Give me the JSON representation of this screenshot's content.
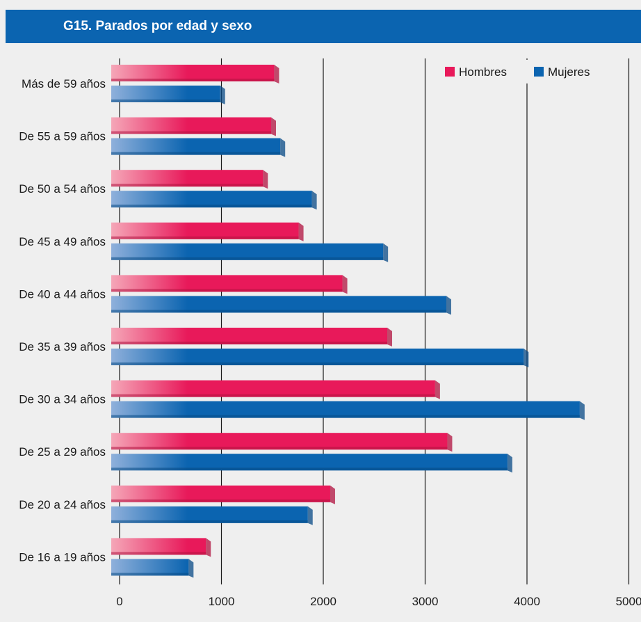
{
  "header": {
    "title": "G15. Parados por edad y sexo"
  },
  "colors": {
    "hombres": "#e8195a",
    "hombres_light": "#f5a7b8",
    "mujeres": "#0b64b0",
    "mujeres_light": "#8fb0db",
    "header_bg": "#0b64b0",
    "background": "#efefef"
  },
  "chart_data": {
    "type": "bar",
    "orientation": "horizontal",
    "title": "G15. Parados por edad y sexo",
    "categories": [
      "Más de 59 años",
      "De 55 a 59 años",
      "De 50 a 54 años",
      "De 45 a 49 años",
      "De 40 a 44 años",
      "De 35 a 39 años",
      "De 30 a 34 años",
      "De 25 a 29 años",
      "De 20 a 24 años",
      "De 16 a 19 años"
    ],
    "series": [
      {
        "name": "Hombres",
        "values": [
          1600,
          1570,
          1490,
          1840,
          2270,
          2710,
          3180,
          3300,
          2150,
          930
        ]
      },
      {
        "name": "Mujeres",
        "values": [
          1070,
          1660,
          1970,
          2670,
          3290,
          4050,
          4600,
          3890,
          1930,
          760
        ]
      }
    ],
    "x_ticks": [
      "0",
      "1000",
      "2000",
      "3000",
      "4000",
      "5000"
    ],
    "xlim": [
      0,
      5000
    ],
    "grid": true,
    "legend": "top-right",
    "xlabel": "",
    "ylabel": ""
  }
}
